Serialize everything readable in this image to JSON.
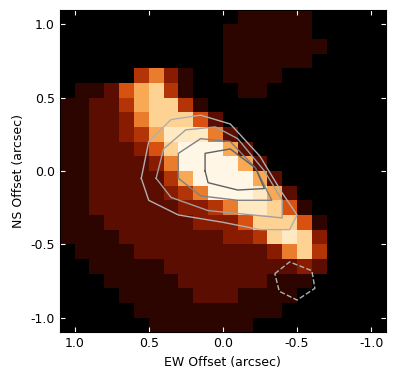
{
  "chart_data": {
    "type": "heatmap",
    "xlabel": "EW Offset (arcsec)",
    "ylabel": "NS Offset (arcsec)",
    "xlim": [
      1.1,
      -1.1
    ],
    "ylim": [
      -1.1,
      1.1
    ],
    "xticks": [
      {
        "value": 1.0,
        "label": "1.0"
      },
      {
        "value": 0.5,
        "label": "0.5"
      },
      {
        "value": 0.0,
        "label": "0.0"
      },
      {
        "value": -0.5,
        "label": "-0.5"
      },
      {
        "value": -1.0,
        "label": "-1.0"
      }
    ],
    "yticks": [
      {
        "value": 1.0,
        "label": "1.0"
      },
      {
        "value": 0.5,
        "label": "0.5"
      },
      {
        "value": 0.0,
        "label": "0.0"
      },
      {
        "value": -0.5,
        "label": "-0.5"
      },
      {
        "value": -1.0,
        "label": "-1.0"
      }
    ],
    "x_edges": [
      1.1,
      1.0,
      0.9,
      0.8,
      0.7,
      0.6,
      0.5,
      0.4,
      0.3,
      0.2,
      0.1,
      0.0,
      -0.1,
      -0.2,
      -0.3,
      -0.4,
      -0.5,
      -0.6,
      -0.7,
      -0.8,
      -0.9,
      -1.0,
      -1.1
    ],
    "y_edges": [
      1.1,
      1.0,
      0.9,
      0.8,
      0.7,
      0.6,
      0.5,
      0.4,
      0.3,
      0.2,
      0.1,
      0.0,
      -0.1,
      -0.2,
      -0.3,
      -0.4,
      -0.5,
      -0.6,
      -0.7,
      -0.8,
      -0.9,
      -1.0,
      -1.1
    ],
    "color_range": [
      0,
      10
    ],
    "cells": [
      [
        0,
        0,
        0,
        0,
        0,
        0,
        0,
        0,
        0,
        0,
        0,
        0,
        1,
        1,
        1,
        1,
        1,
        0,
        0,
        0,
        0,
        0
      ],
      [
        0,
        0,
        0,
        0,
        0,
        0,
        0,
        0,
        0,
        0,
        0,
        1,
        1,
        1,
        1,
        1,
        1,
        0,
        0,
        0,
        0,
        0
      ],
      [
        0,
        0,
        0,
        0,
        0,
        0,
        0,
        0,
        0,
        0,
        0,
        1,
        1,
        1,
        1,
        1,
        1,
        1,
        0,
        0,
        0,
        0
      ],
      [
        0,
        0,
        0,
        0,
        0,
        0,
        0,
        0,
        0,
        0,
        0,
        1,
        1,
        1,
        1,
        1,
        1,
        0,
        0,
        0,
        0,
        0
      ],
      [
        0,
        0,
        0,
        0,
        0,
        4,
        6,
        3,
        1,
        0,
        0,
        1,
        1,
        1,
        1,
        0,
        0,
        0,
        0,
        0,
        0,
        0
      ],
      [
        0,
        1,
        1,
        2,
        5,
        7,
        8,
        4,
        1,
        0,
        0,
        0,
        1,
        1,
        0,
        0,
        0,
        0,
        0,
        0,
        0,
        0
      ],
      [
        1,
        1,
        2,
        2,
        4,
        7,
        8,
        8,
        4,
        1,
        0,
        0,
        0,
        0,
        0,
        0,
        0,
        0,
        0,
        0,
        0,
        0
      ],
      [
        1,
        1,
        2,
        2,
        3,
        6,
        8,
        8,
        8,
        5,
        2,
        0,
        0,
        0,
        0,
        0,
        0,
        0,
        0,
        0,
        0,
        0
      ],
      [
        1,
        1,
        2,
        2,
        3,
        4,
        7,
        9,
        9,
        9,
        6,
        2,
        0,
        0,
        0,
        0,
        0,
        0,
        0,
        0,
        0,
        0
      ],
      [
        1,
        1,
        2,
        2,
        2,
        3,
        5,
        8,
        10,
        10,
        10,
        7,
        2,
        0,
        0,
        0,
        0,
        0,
        0,
        0,
        0,
        0
      ],
      [
        1,
        1,
        2,
        2,
        2,
        2,
        3,
        6,
        10,
        10,
        10,
        10,
        7,
        2,
        0,
        0,
        0,
        0,
        0,
        0,
        0,
        0
      ],
      [
        1,
        1,
        2,
        2,
        2,
        2,
        2,
        4,
        7,
        10,
        10,
        10,
        10,
        7,
        2,
        0,
        0,
        0,
        0,
        0,
        0,
        0
      ],
      [
        1,
        1,
        2,
        2,
        2,
        2,
        2,
        3,
        4,
        6,
        10,
        10,
        10,
        9,
        7,
        2,
        0,
        0,
        0,
        0,
        0,
        0
      ],
      [
        1,
        1,
        2,
        2,
        2,
        2,
        2,
        2,
        3,
        3,
        4,
        6,
        9,
        9,
        8,
        5,
        1,
        0,
        0,
        0,
        0,
        0
      ],
      [
        1,
        1,
        1,
        2,
        2,
        2,
        2,
        2,
        2,
        3,
        3,
        3,
        5,
        8,
        8,
        8,
        5,
        1,
        0,
        0,
        0,
        0
      ],
      [
        1,
        1,
        1,
        1,
        2,
        2,
        2,
        2,
        2,
        2,
        2,
        3,
        3,
        4,
        8,
        9,
        8,
        3,
        0,
        0,
        0,
        0
      ],
      [
        0,
        1,
        1,
        1,
        1,
        2,
        2,
        2,
        2,
        2,
        2,
        2,
        2,
        2,
        3,
        6,
        8,
        4,
        0,
        0,
        0,
        0
      ],
      [
        0,
        0,
        1,
        1,
        1,
        1,
        1,
        2,
        2,
        2,
        2,
        2,
        2,
        2,
        2,
        2,
        3,
        2,
        0,
        0,
        0,
        0
      ],
      [
        0,
        0,
        0,
        1,
        1,
        1,
        1,
        1,
        2,
        2,
        2,
        2,
        2,
        2,
        1,
        1,
        1,
        0,
        0,
        0,
        0,
        0
      ],
      [
        0,
        0,
        0,
        0,
        1,
        1,
        1,
        1,
        1,
        2,
        2,
        2,
        1,
        1,
        1,
        1,
        0,
        0,
        0,
        0,
        0,
        0
      ],
      [
        0,
        0,
        0,
        0,
        0,
        1,
        1,
        1,
        1,
        1,
        1,
        1,
        1,
        1,
        1,
        0,
        0,
        0,
        0,
        0,
        0,
        0
      ],
      [
        0,
        0,
        0,
        0,
        0,
        0,
        1,
        1,
        1,
        1,
        1,
        1,
        1,
        0,
        0,
        0,
        0,
        0,
        0,
        0,
        0,
        0
      ]
    ],
    "contours": [
      {
        "color": "#b0b0b0",
        "line_style": "solid",
        "x": [
          0.55,
          0.5,
          0.35,
          0.15,
          -0.05,
          -0.25,
          -0.4,
          -0.5,
          -0.45,
          -0.25,
          0.0,
          0.3,
          0.5,
          0.55
        ],
        "y": [
          -0.05,
          0.2,
          0.35,
          0.38,
          0.32,
          0.1,
          -0.15,
          -0.3,
          -0.4,
          -0.4,
          -0.35,
          -0.3,
          -0.2,
          -0.05
        ]
      },
      {
        "color": "#a0a0a0",
        "line_style": "solid",
        "x": [
          0.45,
          0.4,
          0.25,
          0.05,
          -0.1,
          -0.28,
          -0.4,
          -0.4,
          -0.2,
          0.1,
          0.35,
          0.45
        ],
        "y": [
          -0.05,
          0.15,
          0.28,
          0.3,
          0.22,
          0.0,
          -0.2,
          -0.32,
          -0.3,
          -0.27,
          -0.18,
          -0.05
        ]
      },
      {
        "color": "#808080",
        "line_style": "solid",
        "x": [
          0.3,
          0.3,
          0.15,
          -0.05,
          -0.22,
          -0.33,
          -0.1,
          0.15,
          0.3
        ],
        "y": [
          -0.05,
          0.12,
          0.22,
          0.2,
          0.02,
          -0.2,
          -0.2,
          -0.17,
          -0.05
        ]
      },
      {
        "color": "#606060",
        "line_style": "solid",
        "x": [
          0.12,
          0.12,
          -0.05,
          -0.22,
          -0.28,
          -0.1,
          0.1,
          0.12
        ],
        "y": [
          0.0,
          0.12,
          0.15,
          0.02,
          -0.12,
          -0.13,
          -0.08,
          0.0
        ]
      },
      {
        "color": "#b0b0b0",
        "line_style": "dashed",
        "x": [
          -0.35,
          -0.45,
          -0.6,
          -0.62,
          -0.5,
          -0.38,
          -0.35
        ],
        "y": [
          -0.7,
          -0.62,
          -0.68,
          -0.8,
          -0.88,
          -0.82,
          -0.7
        ]
      }
    ]
  }
}
